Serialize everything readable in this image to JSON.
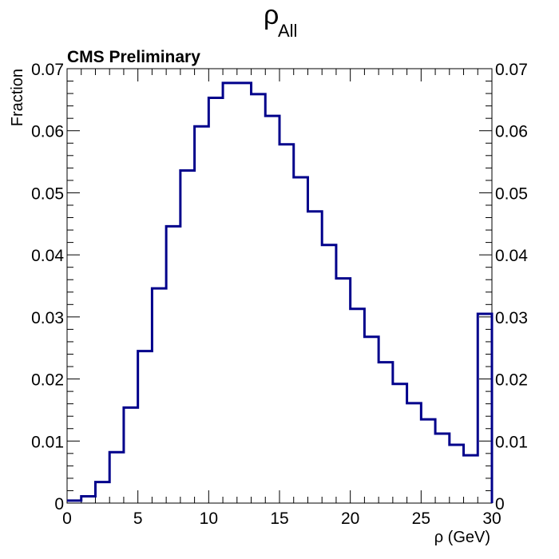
{
  "chart_data": {
    "type": "step-histogram",
    "title": "ρ",
    "title_subscript": "All",
    "label": "CMS Preliminary",
    "xlabel": "ρ (GeV)",
    "ylabel": "Fraction",
    "xlim": [
      0,
      30
    ],
    "ylim": [
      0,
      0.07
    ],
    "x_ticks": [
      0,
      5,
      10,
      15,
      20,
      25,
      30
    ],
    "y_ticks": [
      0,
      0.01,
      0.02,
      0.03,
      0.04,
      0.05,
      0.06,
      0.07
    ],
    "x_tick_labels": [
      "0",
      "5",
      "10",
      "15",
      "20",
      "25",
      "30"
    ],
    "y_tick_labels": [
      "0",
      "0.01",
      "0.02",
      "0.03",
      "0.04",
      "0.05",
      "0.06",
      "0.07"
    ],
    "bin_edges": [
      0,
      1,
      2,
      3,
      4,
      5,
      6,
      7,
      8,
      9,
      10,
      11,
      12,
      13,
      14,
      15,
      16,
      17,
      18,
      19,
      20,
      21,
      22,
      23,
      24,
      25,
      26,
      27,
      28,
      29,
      30
    ],
    "values": [
      0.0004,
      0.0011,
      0.0034,
      0.0082,
      0.0154,
      0.0245,
      0.0346,
      0.0446,
      0.0536,
      0.0607,
      0.0653,
      0.0677,
      0.0677,
      0.0659,
      0.0624,
      0.0578,
      0.0525,
      0.047,
      0.0416,
      0.0362,
      0.0313,
      0.0268,
      0.0227,
      0.0192,
      0.0161,
      0.0135,
      0.0112,
      0.0094,
      0.0077,
      0.0305
    ],
    "grid": false,
    "line_color": "#00008b"
  }
}
